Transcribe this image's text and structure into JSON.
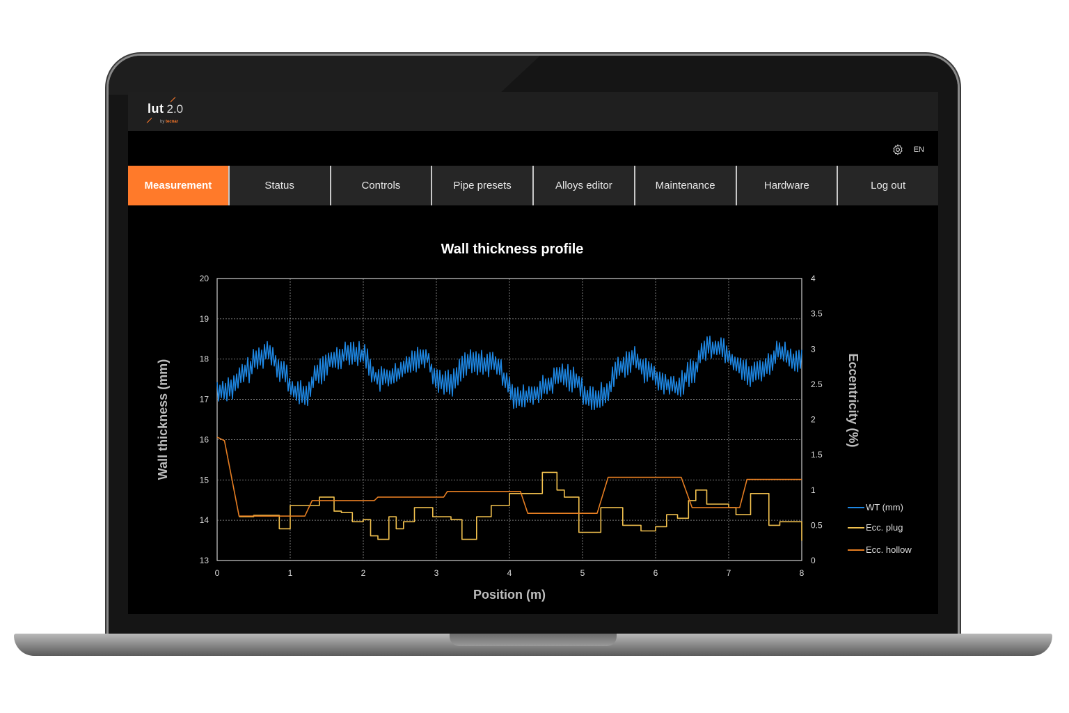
{
  "app": {
    "logo": "lut",
    "version": "2.0",
    "by_prefix": "by",
    "brand": "tecnar",
    "language": "EN",
    "settings_icon": "gear-icon"
  },
  "tabs": [
    {
      "label": "Measurement",
      "active": true
    },
    {
      "label": "Status",
      "active": false
    },
    {
      "label": "Controls",
      "active": false
    },
    {
      "label": "Pipe presets",
      "active": false
    },
    {
      "label": "Alloys editor",
      "active": false
    },
    {
      "label": "Maintenance",
      "active": false
    },
    {
      "label": "Hardware",
      "active": false
    },
    {
      "label": "Log out",
      "active": false
    }
  ],
  "colors": {
    "accent": "#ff7a2a",
    "wt": "#1e88e5",
    "plug": "#f2c14e",
    "hollow": "#e67e22"
  },
  "chart_data": {
    "type": "line",
    "title": "Wall thickness profile",
    "xlabel": "Position (m)",
    "ylabel": "Wall thickness (mm)",
    "y2label": "Eccentricity (%)",
    "xlim": [
      0,
      8
    ],
    "ylim": [
      13,
      20
    ],
    "y2lim": [
      0,
      4
    ],
    "xticks": [
      "0",
      "1",
      "2",
      "3",
      "4",
      "5",
      "6",
      "7",
      "8"
    ],
    "yticks": [
      "13",
      "14",
      "15",
      "16",
      "17",
      "18",
      "19",
      "20"
    ],
    "y2ticks": [
      "0",
      "0.5",
      "1",
      "1.5",
      "2",
      "2.5",
      "3",
      "3.5",
      "4"
    ],
    "grid": true,
    "legend_position": "right",
    "series": [
      {
        "name": "WT (mm)",
        "axis": "left",
        "color": "#1e88e5",
        "style": "noisy",
        "x": [
          0,
          0.2,
          0.4,
          0.55,
          0.7,
          0.9,
          1.05,
          1.2,
          1.4,
          1.6,
          1.8,
          2.0,
          2.2,
          2.45,
          2.7,
          2.85,
          3.0,
          3.2,
          3.4,
          3.6,
          3.8,
          3.95,
          4.1,
          4.3,
          4.5,
          4.7,
          4.9,
          5.1,
          5.3,
          5.5,
          5.7,
          5.9,
          6.1,
          6.3,
          6.5,
          6.7,
          6.9,
          7.1,
          7.3,
          7.5,
          7.7,
          7.9,
          8.0
        ],
        "y": [
          17.2,
          17.3,
          17.7,
          18.0,
          18.2,
          17.7,
          17.2,
          17.1,
          17.7,
          18.0,
          18.2,
          18.1,
          17.5,
          17.6,
          18.0,
          18.1,
          17.5,
          17.4,
          17.9,
          17.9,
          17.9,
          17.5,
          17.0,
          17.1,
          17.3,
          17.6,
          17.5,
          17.0,
          17.1,
          17.8,
          18.0,
          17.7,
          17.4,
          17.3,
          17.7,
          18.3,
          18.3,
          17.9,
          17.6,
          17.8,
          18.2,
          18.0,
          17.9
        ]
      },
      {
        "name": "Ecc. plug",
        "axis": "right",
        "color": "#f2c14e",
        "style": "step",
        "x": [
          0.3,
          0.5,
          0.85,
          1.0,
          1.25,
          1.4,
          1.6,
          1.7,
          1.85,
          2.0,
          2.1,
          2.2,
          2.35,
          2.45,
          2.55,
          2.7,
          2.95,
          3.2,
          3.35,
          3.55,
          3.75,
          4.0,
          4.2,
          4.45,
          4.65,
          4.75,
          4.95,
          5.25,
          5.55,
          5.8,
          6.0,
          6.15,
          6.3,
          6.45,
          6.55,
          6.7,
          6.9,
          7.0,
          7.1,
          7.3,
          7.55,
          7.7,
          8.0
        ],
        "y": [
          0.62,
          0.64,
          0.45,
          0.78,
          0.78,
          0.9,
          0.7,
          0.68,
          0.55,
          0.58,
          0.35,
          0.3,
          0.62,
          0.45,
          0.55,
          0.75,
          0.62,
          0.58,
          0.3,
          0.62,
          0.78,
          0.95,
          0.95,
          1.25,
          1.0,
          0.9,
          0.4,
          0.75,
          0.5,
          0.42,
          0.48,
          0.65,
          0.6,
          0.85,
          1.0,
          0.8,
          0.8,
          0.75,
          0.65,
          0.95,
          0.5,
          0.55,
          0.28
        ]
      },
      {
        "name": "Ecc. hollow",
        "axis": "right",
        "color": "#e67e22",
        "style": "smoothstep",
        "x": [
          0,
          0.1,
          0.3,
          1.2,
          1.3,
          2.15,
          2.2,
          3.1,
          3.15,
          4.15,
          4.25,
          5.2,
          5.35,
          6.35,
          6.5,
          7.15,
          7.25,
          8.0
        ],
        "y": [
          1.75,
          1.7,
          0.63,
          0.63,
          0.85,
          0.85,
          0.9,
          0.9,
          0.98,
          0.98,
          0.67,
          0.67,
          1.18,
          1.18,
          0.75,
          0.75,
          1.15,
          1.15
        ]
      }
    ]
  }
}
